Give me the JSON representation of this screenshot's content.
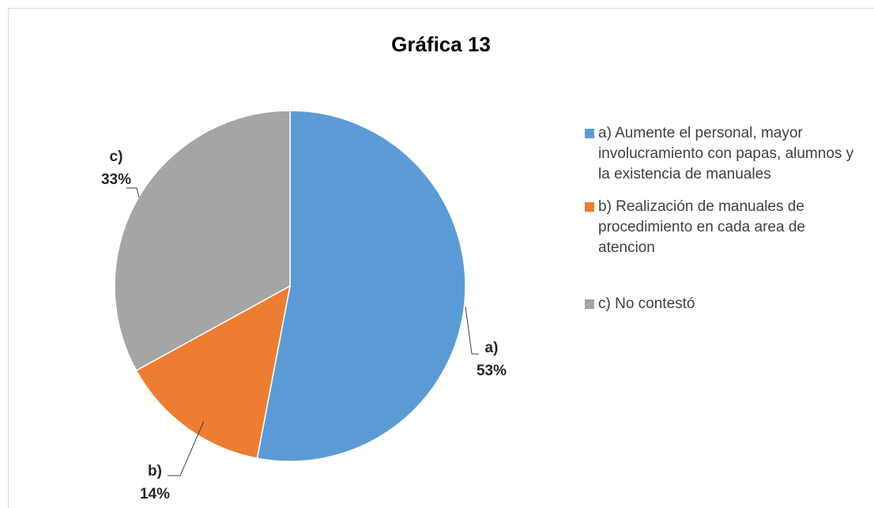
{
  "chart_data": {
    "type": "pie",
    "title": "Gráfica 13",
    "categories": [
      "a) Aumente el personal, mayor involucramiento con papas, alumnos y la existencia de manuales",
      "b) Realización de manuales de procedimiento en cada area de atencion",
      "c) No contestó"
    ],
    "labels": [
      "a)",
      "b)",
      "c)"
    ],
    "values": [
      53,
      14,
      33
    ],
    "value_labels": [
      "53%",
      "14%",
      "33%"
    ],
    "colors": [
      "#5B9BD5",
      "#ED7D31",
      "#A5A5A5"
    ],
    "legend": "right"
  }
}
